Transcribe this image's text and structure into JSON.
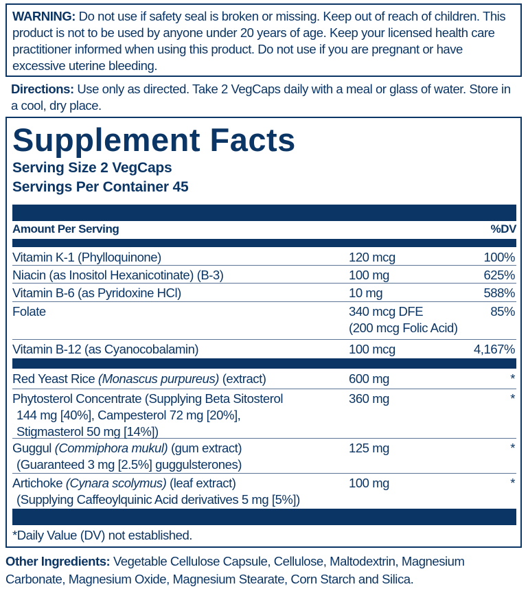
{
  "warning": {
    "label": "WARNING:",
    "text": " Do not use if safety seal is broken or missing. Keep out of reach of children. This product is not to be used by anyone under 20 years of age. Keep your licensed health care practitioner informed when using this product. Do not use if you are pregnant or have excessive uterine bleeding."
  },
  "directions": {
    "label": "Directions:",
    "text": " Use only as directed. Take 2 VegCaps daily with a meal or glass of water. Store in a cool, dry place."
  },
  "facts": {
    "title": "Supplement Facts",
    "serving_size": "Serving Size 2 VegCaps",
    "servings_per_container": "Servings Per Container 45",
    "header_amount": "Amount Per Serving",
    "header_dv": "%DV",
    "vitamins": [
      {
        "name": "Vitamin K-1 (Phylloquinone)",
        "amount": "120 mcg",
        "dv": "100%"
      },
      {
        "name": "Niacin (as Inositol Hexanicotinate) (B-3)",
        "amount": "100 mg",
        "dv": "625%"
      },
      {
        "name": "Vitamin B-6 (as Pyridoxine HCl)",
        "amount": "10 mg",
        "dv": "588%"
      },
      {
        "name": "Folate",
        "amount": "340 mcg DFE",
        "amount2": "(200 mcg Folic Acid)",
        "dv": "85%"
      },
      {
        "name": "Vitamin B-12 (as Cyanocobalamin)",
        "amount": "100 mcg",
        "dv": "4,167%"
      }
    ],
    "others": [
      {
        "pre": "Red Yeast Rice ",
        "italic": "(Monascus purpureus)",
        "post": " (extract)",
        "lines": [],
        "amount": "600 mg",
        "dv": "*"
      },
      {
        "pre": "Phytosterol Concentrate (Supplying Beta Sitosterol",
        "italic": "",
        "post": "",
        "lines": [
          "144 mg [40%], Campesterol 72 mg [20%],",
          "Stigmasterol 50 mg [14%])"
        ],
        "amount": "360 mg",
        "dv": "*"
      },
      {
        "pre": "Guggul ",
        "italic": "(Commiphora mukul)",
        "post": " (gum extract)",
        "lines": [
          "(Guaranteed 3 mg [2.5%] guggulsterones)"
        ],
        "amount": "125 mg",
        "dv": "*"
      },
      {
        "pre": "Artichoke ",
        "italic": "(Cynara scolymus)",
        "post": " (leaf extract)",
        "lines": [
          "(Supplying Caffeoylquinic Acid derivatives 5 mg [5%])"
        ],
        "amount": "100 mg",
        "dv": "*"
      }
    ],
    "footnote": "*Daily Value (DV) not established."
  },
  "other_ingredients": {
    "label": "Other Ingredients:",
    "text": " Vegetable Cellulose Capsule, Cellulose, Maltodextrin, Magnesium Carbonate, Magnesium Oxide, Magnesium Stearate, Corn Starch and Silica."
  },
  "colors": {
    "navy": "#0b3564"
  }
}
